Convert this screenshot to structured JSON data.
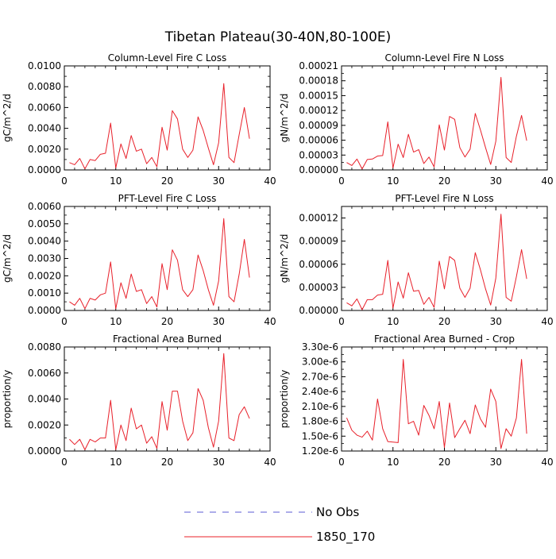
{
  "page_title": "Tibetan Plateau(30-40N,80-100E)",
  "legend": {
    "items": [
      {
        "label": "No Obs",
        "style": "dashed",
        "color": "#5b5bd6"
      },
      {
        "label": "1850_170",
        "style": "solid",
        "color": "#e8202a"
      }
    ]
  },
  "colors": {
    "series": "#e8202a",
    "obs": "#5b5bd6",
    "axis": "#000000"
  },
  "chart_data": [
    {
      "type": "line",
      "title": "Column-Level Fire C Loss",
      "ylabel": "gC/m^2/d",
      "xlabel": "",
      "xlim": [
        0,
        40
      ],
      "ylim": [
        0,
        0.01
      ],
      "xticks": [
        0,
        10,
        20,
        30,
        40
      ],
      "yticks": [
        0,
        0.002,
        0.004,
        0.006,
        0.008,
        0.01
      ],
      "ytick_labels": [
        "0.0000",
        "0.0020",
        "0.0040",
        "0.0060",
        "0.0080",
        "0.0100"
      ],
      "x": [
        1,
        2,
        3,
        4,
        5,
        6,
        7,
        8,
        9,
        10,
        11,
        12,
        13,
        14,
        15,
        16,
        17,
        18,
        19,
        20,
        21,
        22,
        23,
        24,
        25,
        26,
        27,
        28,
        29,
        30,
        31,
        32,
        33,
        34,
        35,
        36
      ],
      "series": [
        {
          "name": "1850_170",
          "values": [
            0.0007,
            0.0005,
            0.0011,
            0.0001,
            0.001,
            0.0009,
            0.0015,
            0.0016,
            0.0045,
            0.0002,
            0.0025,
            0.0011,
            0.0033,
            0.0018,
            0.002,
            0.0006,
            0.0012,
            0.0003,
            0.0041,
            0.0019,
            0.0057,
            0.0049,
            0.002,
            0.0012,
            0.0019,
            0.0051,
            0.0038,
            0.0021,
            0.0005,
            0.0026,
            0.0083,
            0.0012,
            0.0007,
            0.0034,
            0.006,
            0.003
          ]
        }
      ]
    },
    {
      "type": "line",
      "title": "Column-Level Fire N Loss",
      "ylabel": "gN/m^2/d",
      "xlabel": "",
      "xlim": [
        0,
        40
      ],
      "ylim": [
        0,
        0.00021
      ],
      "xticks": [
        0,
        10,
        20,
        30,
        40
      ],
      "yticks": [
        0,
        3e-05,
        6e-05,
        9e-05,
        0.00012,
        0.00015,
        0.00018,
        0.00021
      ],
      "ytick_labels": [
        "0.00000",
        "0.00003",
        "0.00006",
        "0.00009",
        "0.00012",
        "0.00015",
        "0.00018",
        "0.00021"
      ],
      "x": [
        1,
        2,
        3,
        4,
        5,
        6,
        7,
        8,
        9,
        10,
        11,
        12,
        13,
        14,
        15,
        16,
        17,
        18,
        19,
        20,
        21,
        22,
        23,
        24,
        25,
        26,
        27,
        28,
        29,
        30,
        31,
        32,
        33,
        34,
        35,
        36
      ],
      "series": [
        {
          "name": "1850_170",
          "values": [
            1.5e-05,
            9e-06,
            2.2e-05,
            2e-06,
            2.1e-05,
            2.2e-05,
            2.8e-05,
            2.9e-05,
            9.7e-05,
            4e-06,
            5.2e-05,
            2.5e-05,
            7.2e-05,
            3.6e-05,
            4.1e-05,
            1.3e-05,
            2.6e-05,
            6e-06,
            9.1e-05,
            4e-05,
            0.000108,
            0.000102,
            4.5e-05,
            2.6e-05,
            4.2e-05,
            0.000114,
            8.1e-05,
            4.5e-05,
            1.1e-05,
            5.8e-05,
            0.000187,
            2.5e-05,
            1.5e-05,
            6.8e-05,
            0.00011,
            5.9e-05
          ]
        }
      ]
    },
    {
      "type": "line",
      "title": "PFT-Level Fire C Loss",
      "ylabel": "gC/m^2/d",
      "xlabel": "",
      "xlim": [
        0,
        40
      ],
      "ylim": [
        0,
        0.006
      ],
      "xticks": [
        0,
        10,
        20,
        30,
        40
      ],
      "yticks": [
        0,
        0.001,
        0.002,
        0.003,
        0.004,
        0.005,
        0.006
      ],
      "ytick_labels": [
        "0.0000",
        "0.0010",
        "0.0020",
        "0.0030",
        "0.0040",
        "0.0050",
        "0.0060"
      ],
      "x": [
        1,
        2,
        3,
        4,
        5,
        6,
        7,
        8,
        9,
        10,
        11,
        12,
        13,
        14,
        15,
        16,
        17,
        18,
        19,
        20,
        21,
        22,
        23,
        24,
        25,
        26,
        27,
        28,
        29,
        30,
        31,
        32,
        33,
        34,
        35,
        36
      ],
      "series": [
        {
          "name": "1850_170",
          "values": [
            0.0005,
            0.0003,
            0.0007,
            0.0001,
            0.0007,
            0.0006,
            0.0009,
            0.001,
            0.0028,
            0.0001,
            0.0016,
            0.0007,
            0.0021,
            0.0011,
            0.0012,
            0.0004,
            0.0008,
            0.0002,
            0.0027,
            0.0012,
            0.0035,
            0.0029,
            0.0012,
            0.0008,
            0.0012,
            0.0032,
            0.0023,
            0.0012,
            0.0003,
            0.0017,
            0.0053,
            0.0008,
            0.0005,
            0.0021,
            0.0041,
            0.0019
          ]
        }
      ]
    },
    {
      "type": "line",
      "title": "PFT-Level Fire N Loss",
      "ylabel": "gN/m^2/d",
      "xlabel": "",
      "xlim": [
        0,
        40
      ],
      "ylim": [
        0,
        0.000135
      ],
      "xticks": [
        0,
        10,
        20,
        30,
        40
      ],
      "yticks": [
        0,
        3e-05,
        6e-05,
        9e-05,
        0.00012
      ],
      "ytick_labels": [
        "0.00000",
        "0.00003",
        "0.00006",
        "0.00009",
        "0.00012"
      ],
      "x": [
        1,
        2,
        3,
        4,
        5,
        6,
        7,
        8,
        9,
        10,
        11,
        12,
        13,
        14,
        15,
        16,
        17,
        18,
        19,
        20,
        21,
        22,
        23,
        24,
        25,
        26,
        27,
        28,
        29,
        30,
        31,
        32,
        33,
        34,
        35,
        36
      ],
      "series": [
        {
          "name": "1850_170",
          "values": [
            1e-05,
            6e-06,
            1.5e-05,
            1e-06,
            1.4e-05,
            1.4e-05,
            2e-05,
            2.1e-05,
            6.5e-05,
            3e-06,
            3.7e-05,
            1.6e-05,
            4.9e-05,
            2.5e-05,
            2.6e-05,
            8e-06,
            1.7e-05,
            4e-06,
            6.4e-05,
            2.8e-05,
            7e-05,
            6.5e-05,
            2.9e-05,
            1.7e-05,
            2.9e-05,
            7.5e-05,
            5.3e-05,
            2.8e-05,
            7e-06,
            4.2e-05,
            0.000125,
            1.7e-05,
            1.2e-05,
            4.4e-05,
            7.9e-05,
            4.1e-05
          ]
        }
      ]
    },
    {
      "type": "line",
      "title": "Fractional Area Burned",
      "ylabel": "proportion/y",
      "xlabel": "",
      "xlim": [
        0,
        40
      ],
      "ylim": [
        0,
        0.008
      ],
      "xticks": [
        0,
        10,
        20,
        30,
        40
      ],
      "yticks": [
        0,
        0.002,
        0.004,
        0.006,
        0.008
      ],
      "ytick_labels": [
        "0.0000",
        "0.0020",
        "0.0040",
        "0.0060",
        "0.0080"
      ],
      "x": [
        1,
        2,
        3,
        4,
        5,
        6,
        7,
        8,
        9,
        10,
        11,
        12,
        13,
        14,
        15,
        16,
        17,
        18,
        19,
        20,
        21,
        22,
        23,
        24,
        25,
        26,
        27,
        28,
        29,
        30,
        31,
        32,
        33,
        34,
        35,
        36
      ],
      "series": [
        {
          "name": "1850_170",
          "values": [
            0.0009,
            0.0005,
            0.0009,
            0.0001,
            0.0009,
            0.0007,
            0.001,
            0.001,
            0.0039,
            0.0001,
            0.002,
            0.0008,
            0.0033,
            0.0017,
            0.002,
            0.0006,
            0.0011,
            0.0002,
            0.0038,
            0.0016,
            0.0046,
            0.0046,
            0.0023,
            0.0008,
            0.0014,
            0.0048,
            0.0039,
            0.0018,
            0.0003,
            0.0023,
            0.0075,
            0.001,
            0.0008,
            0.0028,
            0.0034,
            0.0025
          ]
        }
      ]
    },
    {
      "type": "line",
      "title": "Fractional Area Burned - Crop",
      "ylabel": "proportion/y",
      "xlabel": "",
      "xlim": [
        0,
        40
      ],
      "ylim": [
        1.2e-06,
        3.3e-06
      ],
      "xticks": [
        0,
        10,
        20,
        30,
        40
      ],
      "yticks": [
        1.2e-06,
        1.5e-06,
        1.8e-06,
        2.1e-06,
        2.4e-06,
        2.7e-06,
        3e-06,
        3.3e-06
      ],
      "ytick_labels": [
        "1.20e-6",
        "1.50e-6",
        "1.80e-6",
        "2.10e-6",
        "2.40e-6",
        "2.70e-6",
        "3.00e-6",
        "3.30e-6"
      ],
      "x": [
        1,
        2,
        3,
        4,
        5,
        6,
        7,
        8,
        9,
        10,
        11,
        12,
        13,
        14,
        15,
        16,
        17,
        18,
        19,
        20,
        21,
        22,
        23,
        24,
        25,
        26,
        27,
        28,
        29,
        30,
        31,
        32,
        33,
        34,
        35,
        36
      ],
      "series": [
        {
          "name": "1850_170",
          "values": [
            1.87e-06,
            1.62e-06,
            1.52e-06,
            1.48e-06,
            1.6e-06,
            1.42e-06,
            2.25e-06,
            1.65e-06,
            1.39e-06,
            1.38e-06,
            1.37e-06,
            3.05e-06,
            1.75e-06,
            1.8e-06,
            1.52e-06,
            2.12e-06,
            1.92e-06,
            1.65e-06,
            2.2e-06,
            1.27e-06,
            2.17e-06,
            1.47e-06,
            1.65e-06,
            1.82e-06,
            1.55e-06,
            2.13e-06,
            1.85e-06,
            1.68e-06,
            2.45e-06,
            2.2e-06,
            1.25e-06,
            1.65e-06,
            1.5e-06,
            1.87e-06,
            3.05e-06,
            1.55e-06
          ]
        }
      ]
    }
  ]
}
